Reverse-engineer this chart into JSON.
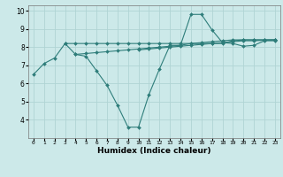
{
  "xlabel": "Humidex (Indice chaleur)",
  "x": [
    0,
    1,
    2,
    3,
    4,
    5,
    6,
    7,
    8,
    9,
    10,
    11,
    12,
    13,
    14,
    15,
    16,
    17,
    18,
    19,
    20,
    21,
    22,
    23
  ],
  "line1": [
    6.5,
    7.1,
    7.4,
    8.2,
    7.6,
    7.5,
    6.7,
    5.9,
    4.8,
    3.6,
    3.6,
    5.4,
    6.8,
    8.1,
    8.1,
    9.8,
    9.8,
    8.95,
    8.25,
    8.2,
    8.05,
    8.1,
    8.35,
    8.35
  ],
  "line2": [
    null,
    null,
    null,
    8.2,
    8.2,
    8.2,
    8.2,
    8.2,
    8.2,
    8.2,
    8.2,
    8.2,
    8.2,
    8.2,
    8.2,
    8.2,
    8.2,
    8.2,
    8.2,
    8.35,
    8.4,
    8.4,
    8.4,
    8.4
  ],
  "line3": [
    null,
    null,
    null,
    null,
    7.6,
    7.65,
    7.7,
    7.75,
    7.8,
    7.85,
    7.9,
    7.95,
    8.0,
    8.05,
    8.1,
    8.2,
    8.25,
    8.3,
    8.35,
    8.4,
    8.4,
    8.4,
    8.4,
    8.4
  ],
  "line4": [
    null,
    null,
    null,
    null,
    null,
    null,
    null,
    null,
    null,
    null,
    7.85,
    7.9,
    7.95,
    8.0,
    8.05,
    8.1,
    8.15,
    8.2,
    8.25,
    8.3,
    8.35,
    8.35,
    8.38,
    8.4
  ],
  "line_color": "#2e7d7a",
  "bg_color": "#cce9e9",
  "grid_color": "#b0d4d4",
  "ylim": [
    3.0,
    10.3
  ],
  "yticks": [
    4,
    5,
    6,
    7,
    8,
    9,
    10
  ],
  "marker": "D",
  "marker_size": 2.0,
  "lw": 0.8
}
